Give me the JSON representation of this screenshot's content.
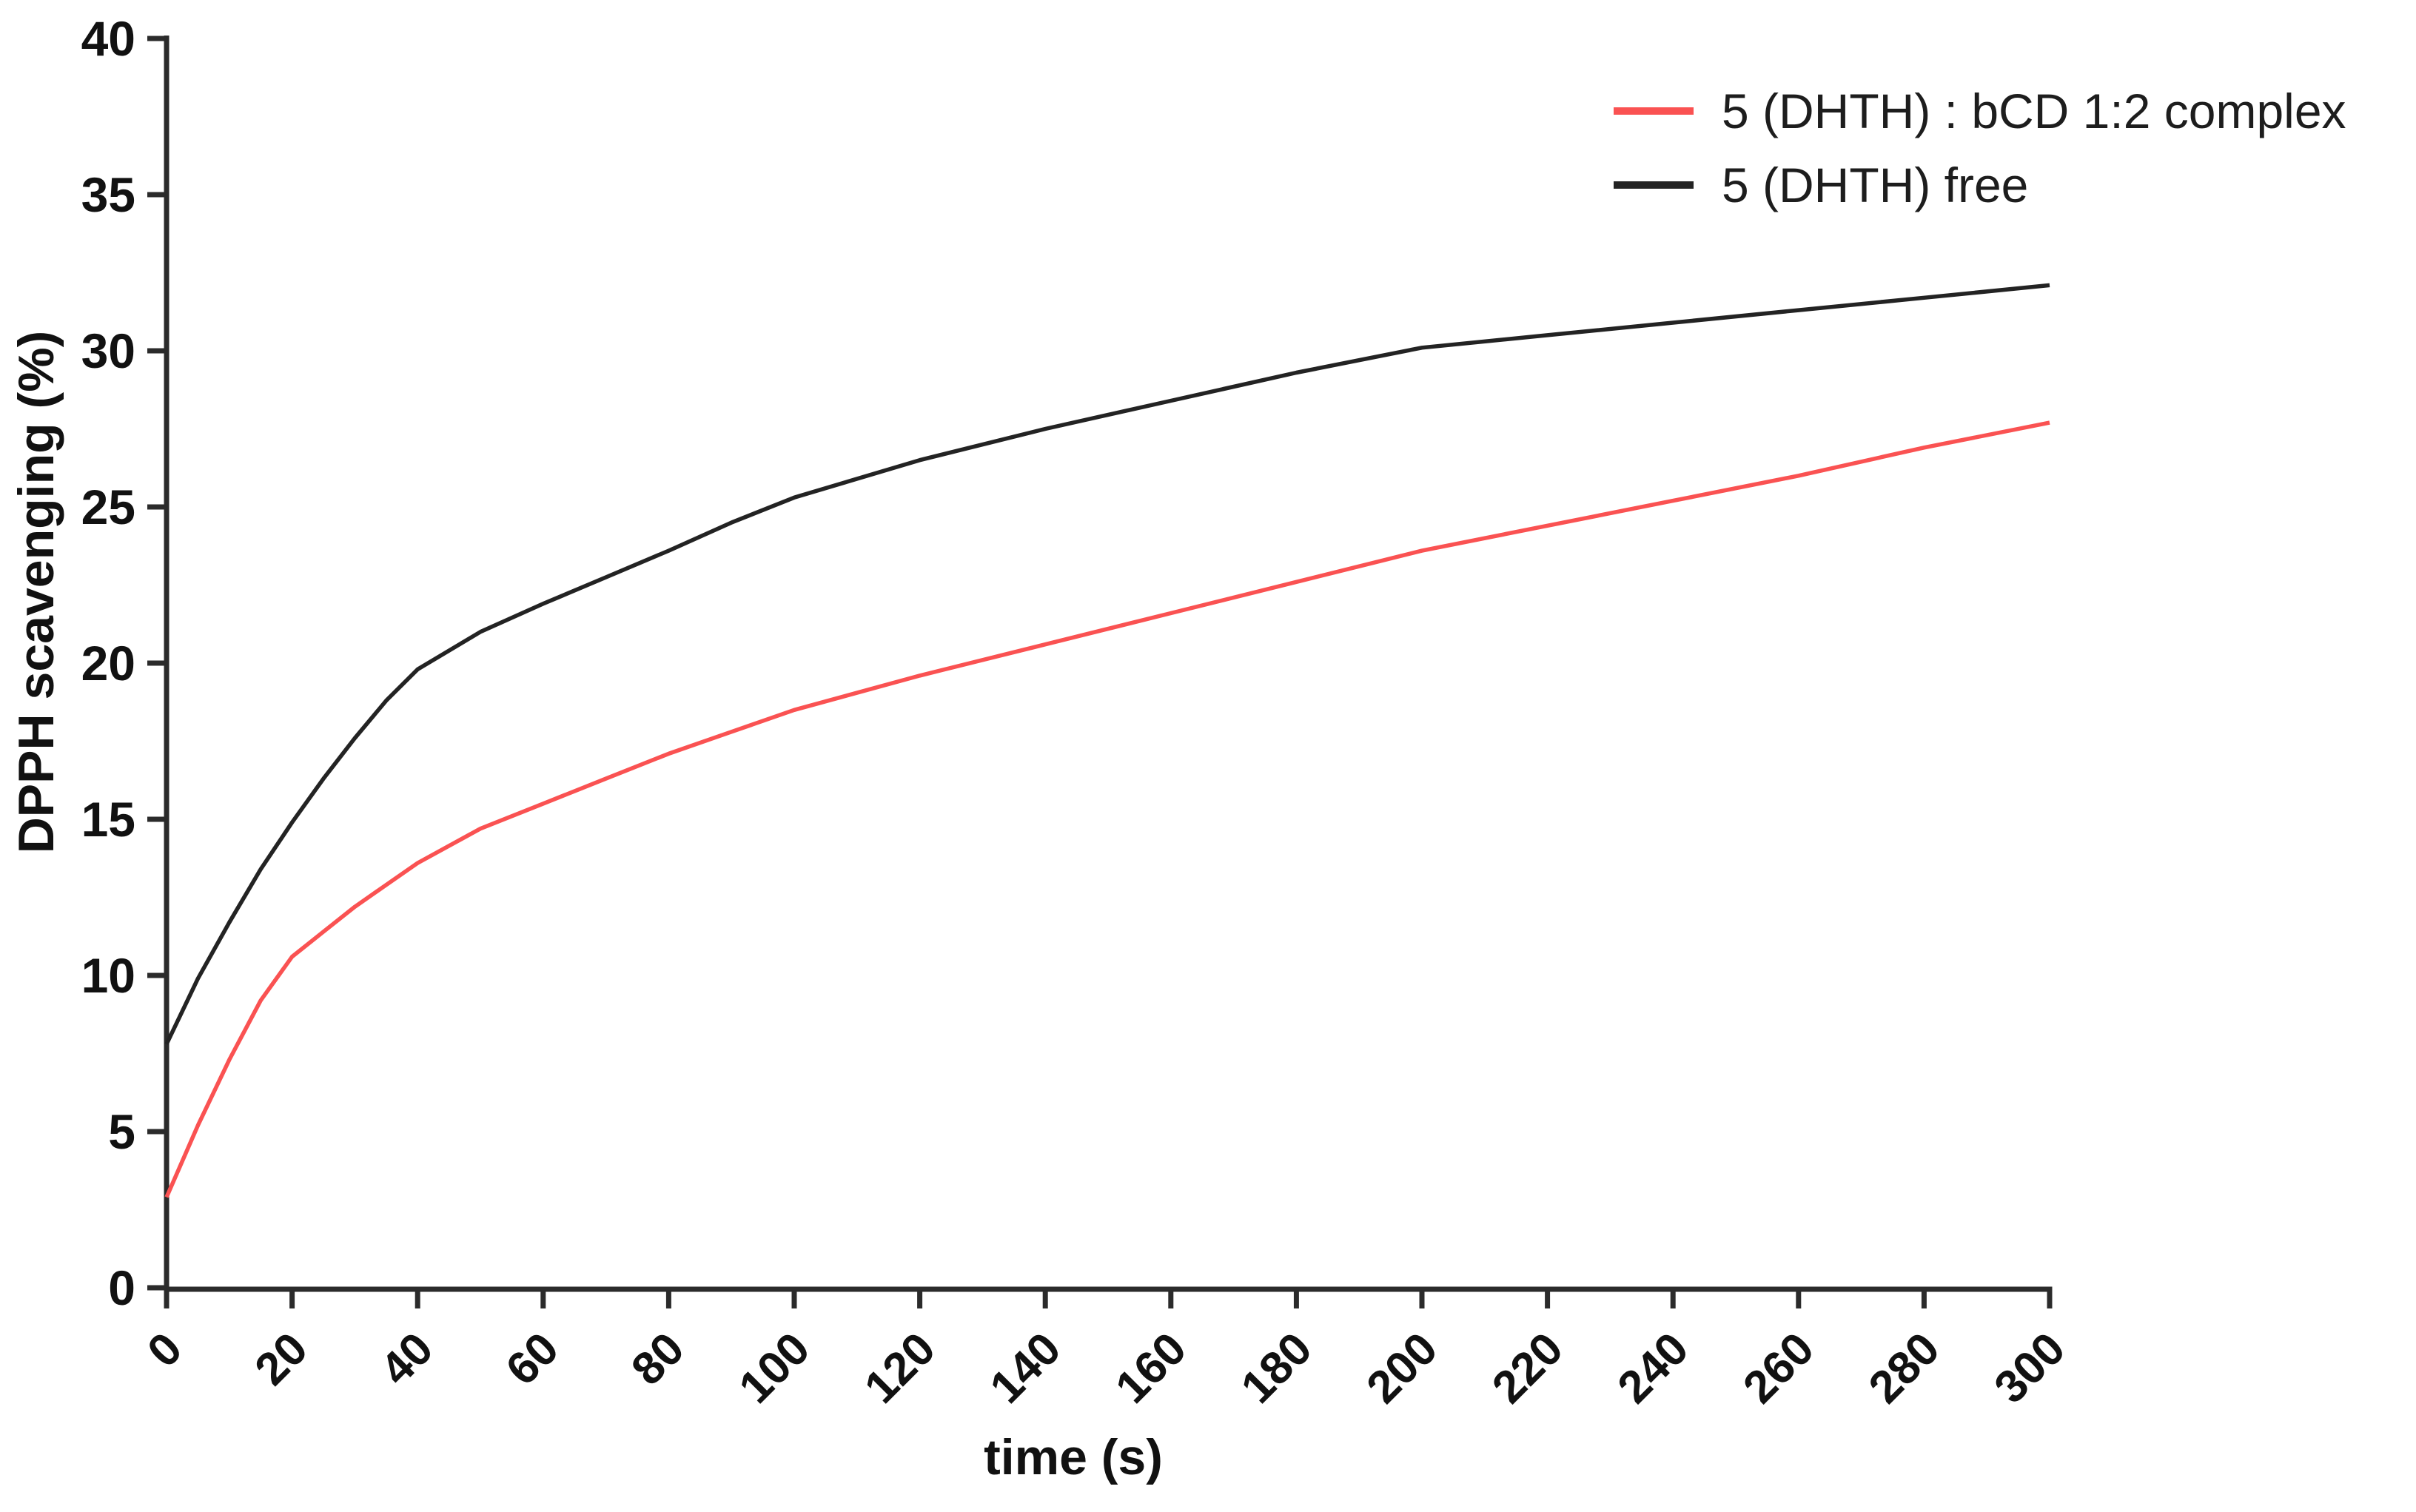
{
  "page": {
    "background": "#ffffff",
    "text_color": "#111111"
  },
  "chart_data": {
    "type": "line",
    "title": "",
    "xlabel": "time (s)",
    "ylabel": "DPPH scavenging (%)",
    "xlim": [
      0,
      300
    ],
    "ylim": [
      0,
      40
    ],
    "xticks": [
      0,
      20,
      40,
      60,
      80,
      100,
      120,
      140,
      160,
      180,
      200,
      220,
      240,
      260,
      280,
      300
    ],
    "yticks": [
      0,
      5,
      10,
      15,
      20,
      25,
      30,
      35,
      40
    ],
    "grid": false,
    "legend_position": "top-right",
    "axis_color": "#2b2b2b",
    "tick_label_color": "#111111",
    "legend_text_color": "#1d1d1d",
    "series": [
      {
        "id": "complex",
        "name": "5 (DHTH) : bCD 1:2 complex",
        "color": "#fa5252",
        "x": [
          0,
          5,
          10,
          15,
          20,
          25,
          30,
          35,
          40,
          50,
          60,
          70,
          80,
          90,
          100,
          120,
          140,
          160,
          180,
          200,
          220,
          240,
          260,
          280,
          300
        ],
        "y": [
          2.9,
          5.2,
          7.3,
          9.2,
          10.6,
          11.4,
          12.2,
          12.9,
          13.6,
          14.7,
          15.5,
          16.3,
          17.1,
          17.8,
          18.5,
          19.6,
          20.6,
          21.6,
          22.6,
          23.6,
          24.4,
          25.2,
          26.0,
          26.9,
          27.7
        ]
      },
      {
        "id": "free",
        "name": "5 (DHTH) free",
        "color": "#232323",
        "x": [
          0,
          5,
          10,
          15,
          20,
          25,
          30,
          35,
          40,
          50,
          60,
          70,
          80,
          90,
          100,
          120,
          140,
          160,
          180,
          200,
          220,
          240,
          260,
          280,
          300
        ],
        "y": [
          7.8,
          9.9,
          11.7,
          13.4,
          14.9,
          16.3,
          17.6,
          18.8,
          19.8,
          21.0,
          21.9,
          22.75,
          23.6,
          24.5,
          25.3,
          26.5,
          27.5,
          28.4,
          29.3,
          30.1,
          30.5,
          30.9,
          31.3,
          31.7,
          32.1
        ]
      }
    ]
  }
}
